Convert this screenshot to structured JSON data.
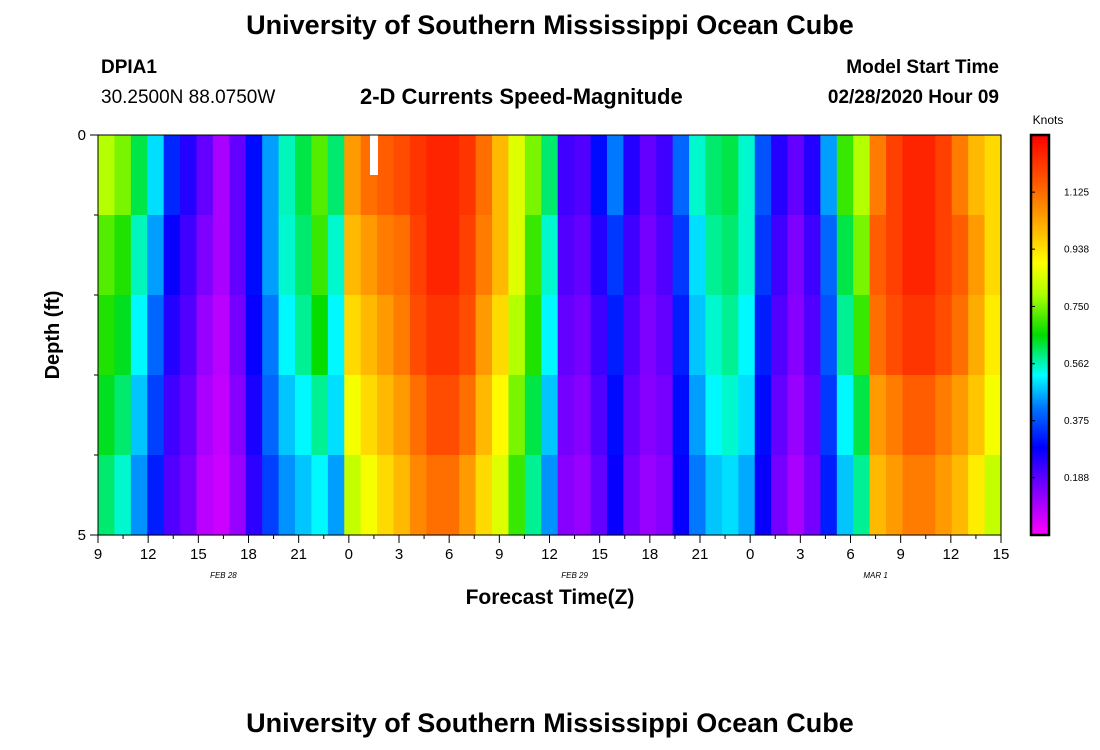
{
  "header": {
    "title": "University of Southern Mississippi Ocean Cube",
    "station": "DPIA1",
    "location": "30.2500N 88.0750W",
    "subtitle": "2-D Currents Speed-Magnitude",
    "model_start_label": "Model Start Time",
    "model_start_value": "02/28/2020 Hour 09"
  },
  "footer": {
    "title": "University of Southern Mississippi Ocean Cube"
  },
  "chart_data": {
    "type": "heatmap",
    "title": "2-D Currents Speed-Magnitude",
    "xlabel": "Forecast Time(Z)",
    "ylabel": "Depth (ft)",
    "x_tick_labels": [
      "9",
      "12",
      "15",
      "18",
      "21",
      "0",
      "3",
      "6",
      "9",
      "12",
      "15",
      "18",
      "21",
      "0",
      "3",
      "6",
      "9",
      "12",
      "15"
    ],
    "date_labels": [
      {
        "label": "FEB 28",
        "at_tick": 2.5
      },
      {
        "label": "FEB 29",
        "at_tick": 9.5
      },
      {
        "label": "MAR 1",
        "at_tick": 15.5
      }
    ],
    "y_tick_labels": [
      "0",
      "5"
    ],
    "ylim": [
      0,
      5
    ],
    "colorbar": {
      "unit_label": "Knots",
      "tick_labels": [
        "0.188",
        "0.375",
        "0.562",
        "0.750",
        "0.938",
        "1.125"
      ],
      "range": [
        0,
        1.3125
      ]
    },
    "depth_rows": 5,
    "time_columns": 55,
    "speed_knots": [
      [
        0.8,
        0.75,
        0.62,
        0.5,
        0.33,
        0.25,
        0.18,
        0.1,
        0.18,
        0.3,
        0.45,
        0.56,
        0.62,
        0.72,
        0.6,
        1.05,
        1.12,
        1.15,
        1.18,
        1.22,
        1.25,
        1.25,
        1.22,
        1.12,
        1.0,
        0.85,
        0.75,
        0.6,
        0.22,
        0.2,
        0.3,
        0.42,
        0.25,
        0.18,
        0.22,
        0.4,
        0.55,
        0.6,
        0.62,
        0.55,
        0.38,
        0.25,
        0.18,
        0.25,
        0.45,
        0.7,
        0.8,
        1.1,
        1.2,
        1.25,
        1.25,
        1.2,
        1.1,
        1.0,
        0.95
      ],
      [
        0.72,
        0.68,
        0.56,
        0.45,
        0.28,
        0.22,
        0.15,
        0.1,
        0.18,
        0.3,
        0.45,
        0.55,
        0.6,
        0.7,
        0.55,
        1.0,
        1.05,
        1.1,
        1.12,
        1.2,
        1.25,
        1.25,
        1.2,
        1.1,
        1.0,
        0.85,
        0.7,
        0.55,
        0.2,
        0.18,
        0.25,
        0.35,
        0.22,
        0.16,
        0.2,
        0.35,
        0.5,
        0.58,
        0.6,
        0.55,
        0.35,
        0.22,
        0.15,
        0.22,
        0.4,
        0.62,
        0.75,
        1.15,
        1.2,
        1.25,
        1.25,
        1.2,
        1.15,
        1.05,
        0.95
      ],
      [
        0.68,
        0.64,
        0.52,
        0.4,
        0.25,
        0.2,
        0.12,
        0.08,
        0.16,
        0.28,
        0.42,
        0.52,
        0.58,
        0.66,
        0.52,
        0.95,
        1.0,
        1.05,
        1.1,
        1.18,
        1.22,
        1.22,
        1.18,
        1.05,
        0.95,
        0.8,
        0.68,
        0.52,
        0.18,
        0.16,
        0.22,
        0.32,
        0.2,
        0.15,
        0.18,
        0.32,
        0.48,
        0.55,
        0.58,
        0.52,
        0.32,
        0.2,
        0.14,
        0.2,
        0.38,
        0.58,
        0.7,
        1.12,
        1.18,
        1.22,
        1.22,
        1.18,
        1.12,
        1.02,
        0.92
      ],
      [
        0.64,
        0.6,
        0.48,
        0.36,
        0.22,
        0.18,
        0.1,
        0.07,
        0.14,
        0.26,
        0.4,
        0.48,
        0.52,
        0.58,
        0.5,
        0.88,
        0.95,
        1.0,
        1.05,
        1.12,
        1.18,
        1.18,
        1.12,
        1.0,
        0.9,
        0.75,
        0.62,
        0.48,
        0.16,
        0.14,
        0.2,
        0.3,
        0.18,
        0.14,
        0.16,
        0.3,
        0.45,
        0.52,
        0.55,
        0.5,
        0.3,
        0.18,
        0.12,
        0.18,
        0.35,
        0.52,
        0.62,
        1.05,
        1.1,
        1.15,
        1.15,
        1.1,
        1.05,
        0.98,
        0.88
      ],
      [
        0.6,
        0.55,
        0.44,
        0.32,
        0.2,
        0.16,
        0.08,
        0.06,
        0.12,
        0.24,
        0.36,
        0.44,
        0.48,
        0.52,
        0.45,
        0.82,
        0.88,
        0.95,
        1.0,
        1.08,
        1.12,
        1.12,
        1.05,
        0.95,
        0.85,
        0.7,
        0.58,
        0.44,
        0.14,
        0.12,
        0.18,
        0.28,
        0.16,
        0.12,
        0.14,
        0.28,
        0.42,
        0.48,
        0.5,
        0.46,
        0.28,
        0.16,
        0.1,
        0.16,
        0.32,
        0.48,
        0.58,
        1.0,
        1.05,
        1.1,
        1.1,
        1.05,
        1.0,
        0.92,
        0.82
      ]
    ]
  },
  "colors": {
    "background": "#ffffff",
    "border": "#000000",
    "colorbar_frame": "#000000",
    "missing_marker": "#ffffff"
  }
}
